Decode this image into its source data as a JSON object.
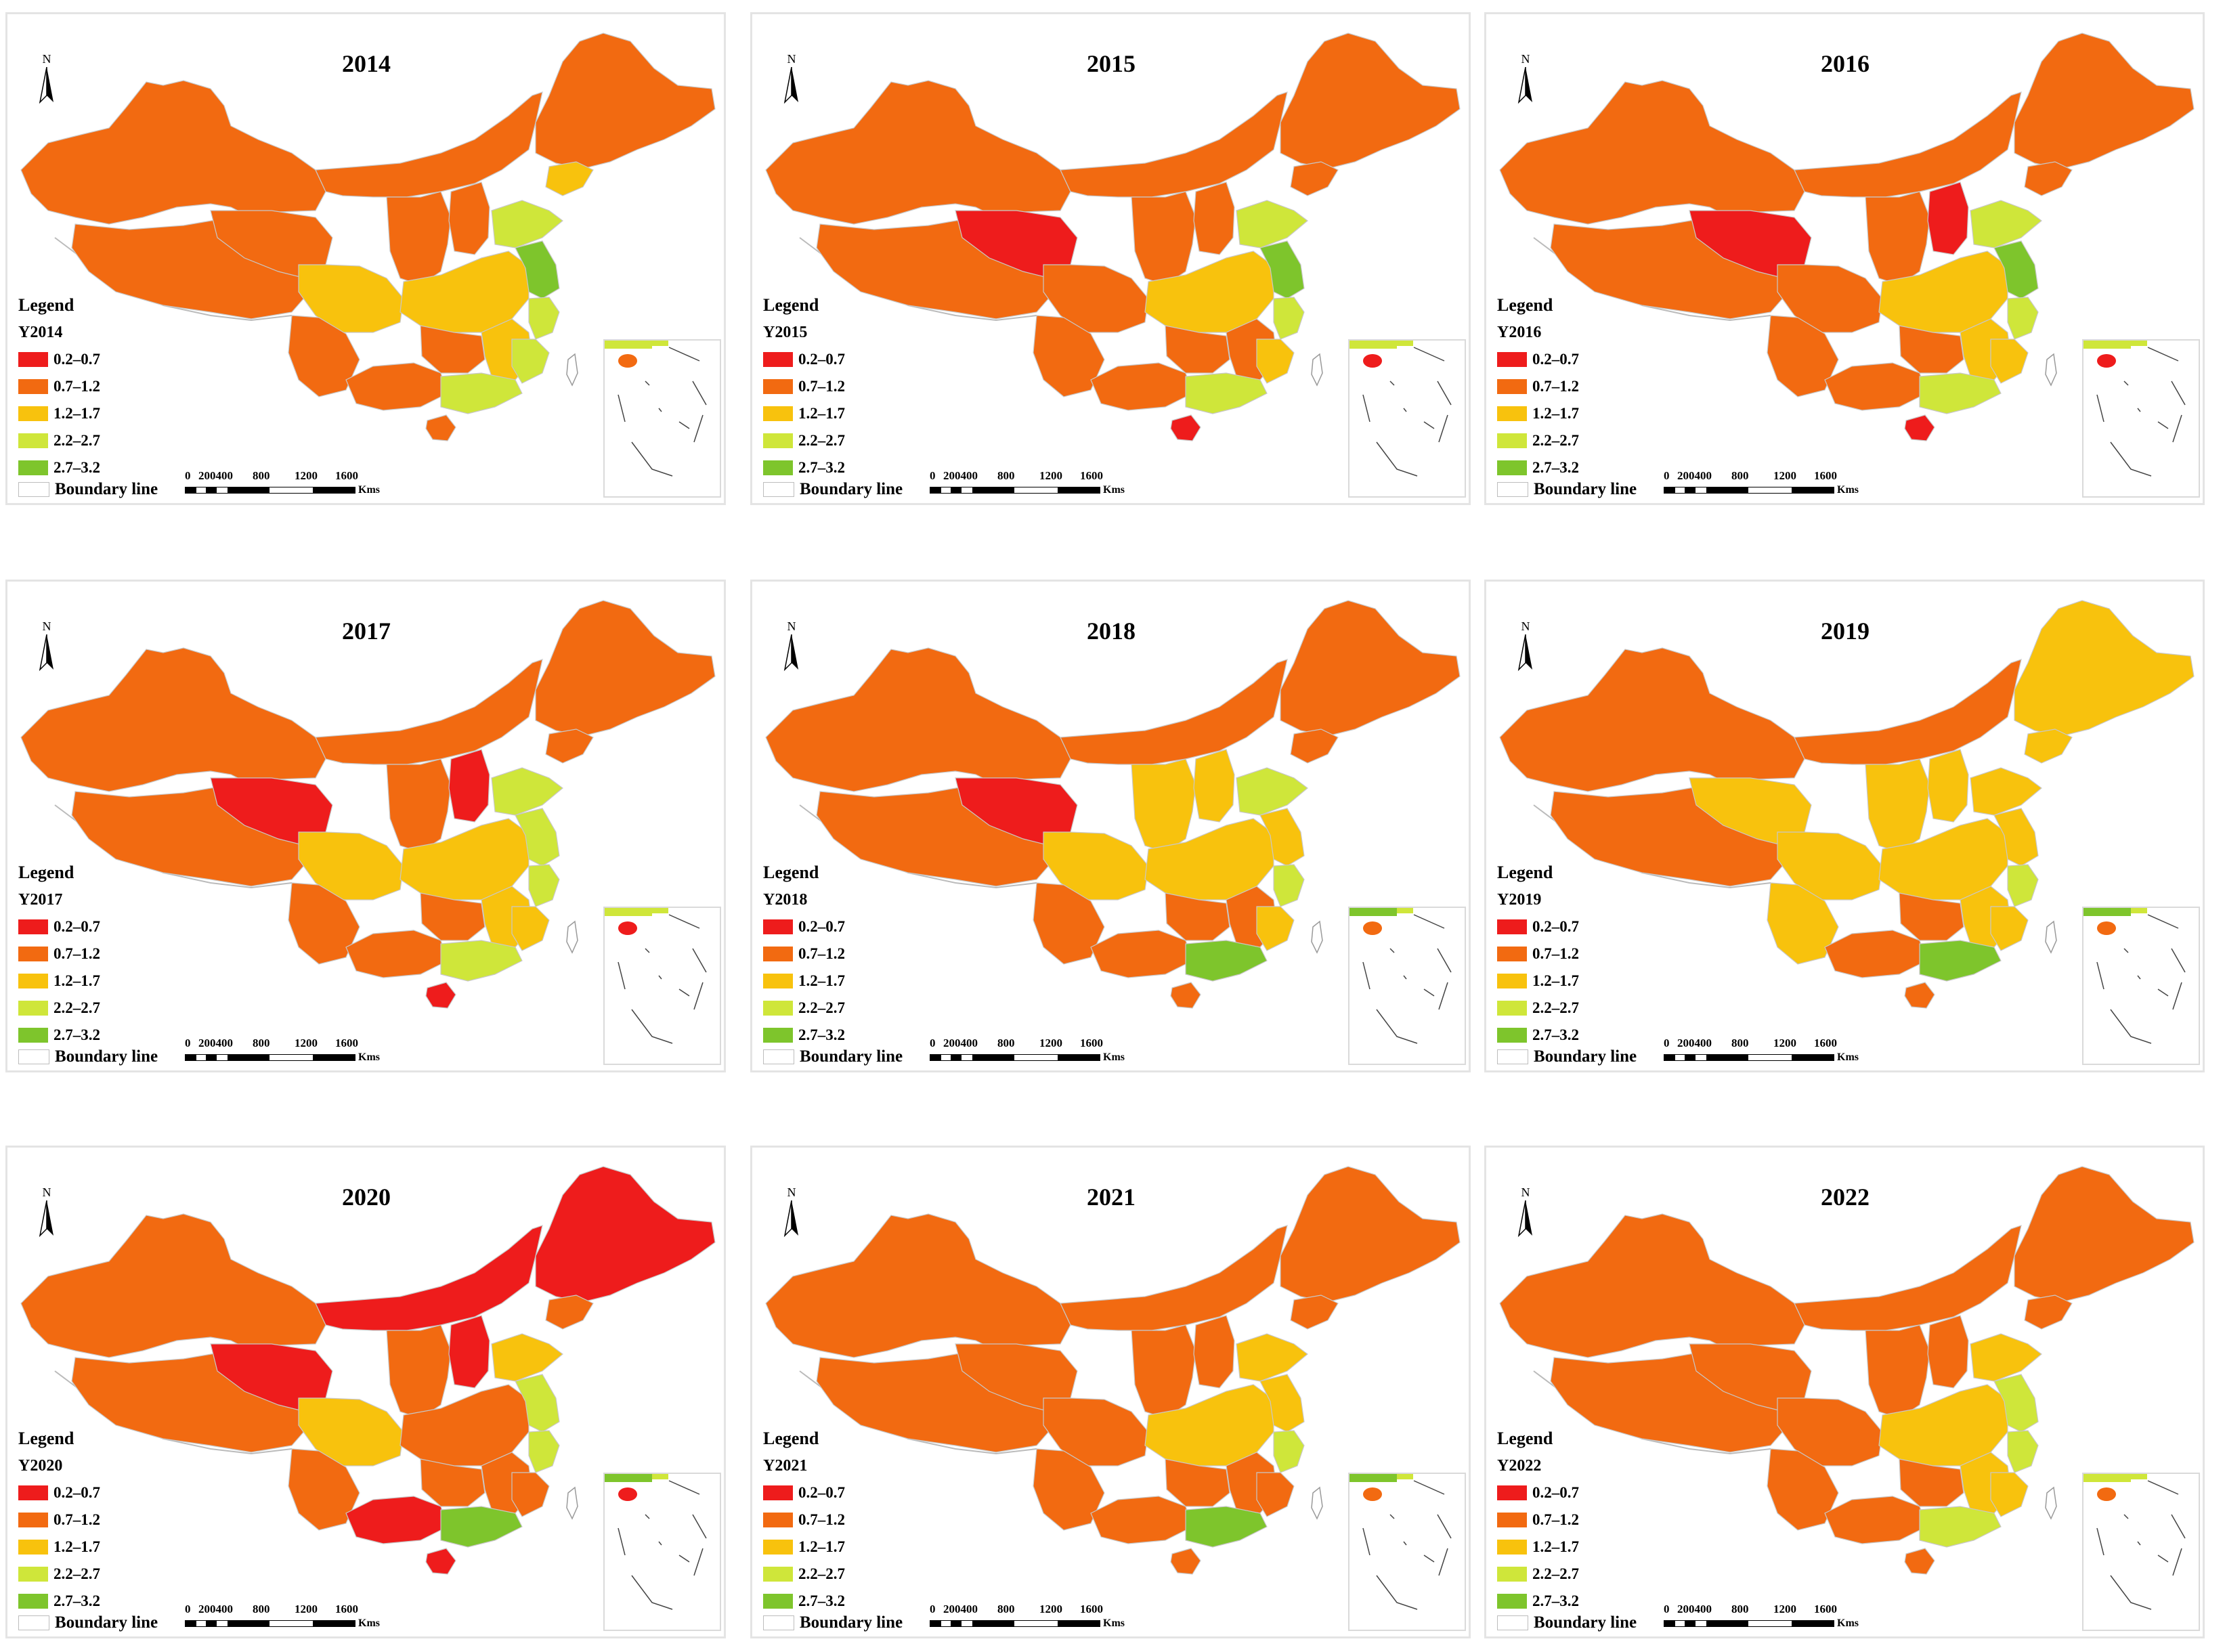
{
  "legend": {
    "heading": "Legend",
    "classes": [
      {
        "label": "0.2–0.7",
        "color": "#ee1c1c"
      },
      {
        "label": "0.7–1.2",
        "color": "#f26a11"
      },
      {
        "label": "1.2–1.7",
        "color": "#f8c20d"
      },
      {
        "label": "2.2–2.7",
        "color": "#cfe63a"
      },
      {
        "label": "2.7–3.2",
        "color": "#7ec52c"
      }
    ],
    "boundary_label": "Boundary line"
  },
  "scale_bar": {
    "ticks": [
      "0",
      "200400",
      "800",
      "1200",
      "1600"
    ],
    "unit": "Kms"
  },
  "north_label": "N",
  "panels": [
    {
      "year": "2014",
      "field": "Y2014",
      "regions": {
        "west": 1,
        "tibet": 1,
        "qinghai": 1,
        "north": 1,
        "northeast": 1,
        "shaanxi": 1,
        "shanxi": 1,
        "sichuan": 2,
        "yunnan": 1,
        "guangxi": 1,
        "central": 2,
        "hunan": 1,
        "jiangxi": 2,
        "shandong": 3,
        "jiangsu": 4,
        "zhejiang": 3,
        "fujian": 3,
        "guangdong": 3,
        "hainan": 1,
        "liaoning": 2
      }
    },
    {
      "year": "2015",
      "field": "Y2015",
      "regions": {
        "west": 1,
        "tibet": 1,
        "qinghai": 0,
        "north": 1,
        "northeast": 1,
        "shaanxi": 1,
        "shanxi": 1,
        "sichuan": 1,
        "yunnan": 1,
        "guangxi": 1,
        "central": 2,
        "hunan": 1,
        "jiangxi": 1,
        "shandong": 3,
        "jiangsu": 4,
        "zhejiang": 3,
        "fujian": 2,
        "guangdong": 3,
        "hainan": 0,
        "liaoning": 1
      }
    },
    {
      "year": "2016",
      "field": "Y2016",
      "regions": {
        "west": 1,
        "tibet": 1,
        "qinghai": 0,
        "north": 1,
        "northeast": 1,
        "shaanxi": 1,
        "shanxi": 0,
        "sichuan": 1,
        "yunnan": 1,
        "guangxi": 1,
        "central": 2,
        "hunan": 1,
        "jiangxi": 2,
        "shandong": 3,
        "jiangsu": 4,
        "zhejiang": 3,
        "fujian": 2,
        "guangdong": 3,
        "hainan": 0,
        "liaoning": 1
      }
    },
    {
      "year": "2017",
      "field": "Y2017",
      "regions": {
        "west": 1,
        "tibet": 1,
        "qinghai": 0,
        "north": 1,
        "northeast": 1,
        "shaanxi": 1,
        "shanxi": 0,
        "sichuan": 2,
        "yunnan": 1,
        "guangxi": 1,
        "central": 2,
        "hunan": 1,
        "jiangxi": 2,
        "shandong": 3,
        "jiangsu": 3,
        "zhejiang": 3,
        "fujian": 2,
        "guangdong": 3,
        "hainan": 0,
        "liaoning": 1
      }
    },
    {
      "year": "2018",
      "field": "Y2018",
      "regions": {
        "west": 1,
        "tibet": 1,
        "qinghai": 0,
        "north": 1,
        "northeast": 1,
        "shaanxi": 2,
        "shanxi": 2,
        "sichuan": 2,
        "yunnan": 1,
        "guangxi": 1,
        "central": 2,
        "hunan": 1,
        "jiangxi": 1,
        "shandong": 3,
        "jiangsu": 2,
        "zhejiang": 3,
        "fujian": 2,
        "guangdong": 4,
        "hainan": 1,
        "liaoning": 1
      }
    },
    {
      "year": "2019",
      "field": "Y2019",
      "regions": {
        "west": 1,
        "tibet": 1,
        "qinghai": 2,
        "north": 1,
        "northeast": 2,
        "shaanxi": 2,
        "shanxi": 2,
        "sichuan": 2,
        "yunnan": 2,
        "guangxi": 1,
        "central": 2,
        "hunan": 1,
        "jiangxi": 2,
        "shandong": 2,
        "jiangsu": 2,
        "zhejiang": 3,
        "fujian": 2,
        "guangdong": 4,
        "hainan": 1,
        "liaoning": 2
      }
    },
    {
      "year": "2020",
      "field": "Y2020",
      "regions": {
        "west": 1,
        "tibet": 1,
        "qinghai": 0,
        "north": 0,
        "northeast": 0,
        "shaanxi": 1,
        "shanxi": 0,
        "sichuan": 2,
        "yunnan": 1,
        "guangxi": 0,
        "central": 1,
        "hunan": 1,
        "jiangxi": 1,
        "shandong": 2,
        "jiangsu": 3,
        "zhejiang": 3,
        "fujian": 1,
        "guangdong": 4,
        "hainan": 0,
        "liaoning": 1
      }
    },
    {
      "year": "2021",
      "field": "Y2021",
      "regions": {
        "west": 1,
        "tibet": 1,
        "qinghai": 1,
        "north": 1,
        "northeast": 1,
        "shaanxi": 1,
        "shanxi": 1,
        "sichuan": 1,
        "yunnan": 1,
        "guangxi": 1,
        "central": 2,
        "hunan": 1,
        "jiangxi": 1,
        "shandong": 2,
        "jiangsu": 2,
        "zhejiang": 3,
        "fujian": 1,
        "guangdong": 4,
        "hainan": 1,
        "liaoning": 1
      }
    },
    {
      "year": "2022",
      "field": "Y2022",
      "regions": {
        "west": 1,
        "tibet": 1,
        "qinghai": 1,
        "north": 1,
        "northeast": 1,
        "shaanxi": 1,
        "shanxi": 1,
        "sichuan": 1,
        "yunnan": 1,
        "guangxi": 1,
        "central": 2,
        "hunan": 1,
        "jiangxi": 2,
        "shandong": 2,
        "jiangsu": 3,
        "zhejiang": 3,
        "fujian": 2,
        "guangdong": 3,
        "hainan": 1,
        "liaoning": 1
      }
    }
  ]
}
